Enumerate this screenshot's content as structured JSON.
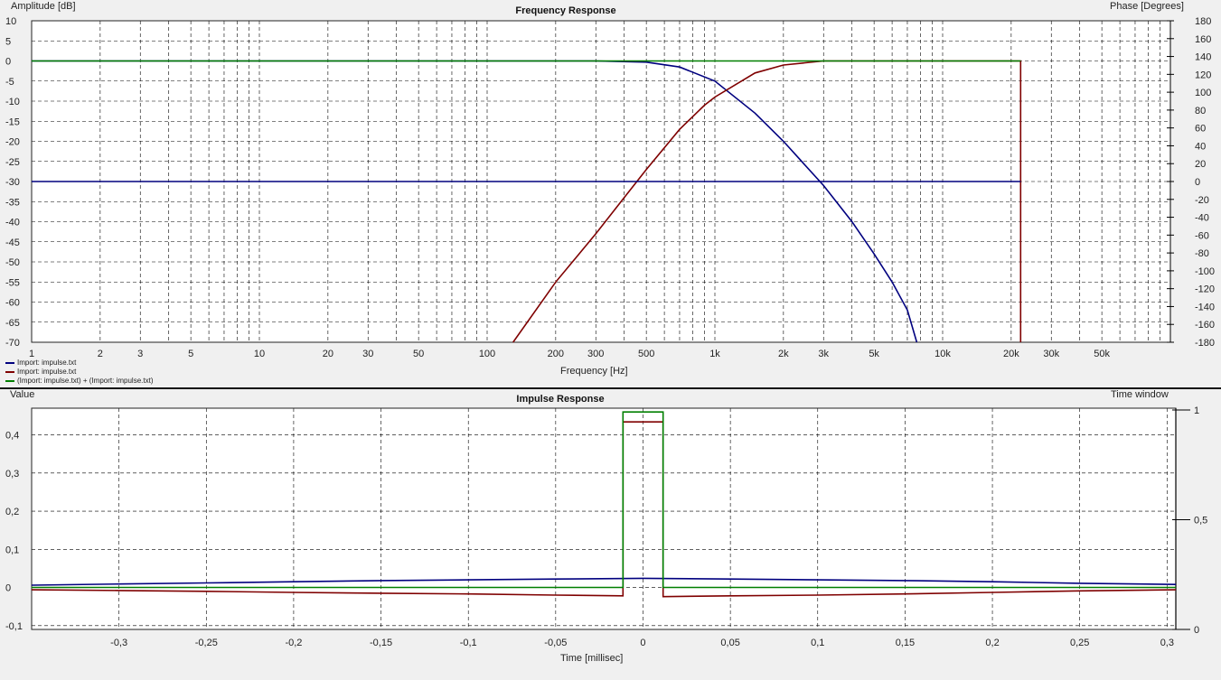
{
  "chart_data": [
    {
      "type": "line",
      "title": "Frequency Response",
      "ylabel": "Amplitude [dB]",
      "y2label": "Phase [Degrees]",
      "xlabel": "Frequency [Hz]",
      "xscale": "log",
      "xlim": [
        1,
        100000
      ],
      "ylim": [
        -70,
        10
      ],
      "y2lim": [
        -180,
        180
      ],
      "grid": true,
      "x_tick_labels": [
        "1",
        "2",
        "3",
        "5",
        "10",
        "20",
        "30",
        "50",
        "100",
        "200",
        "300",
        "500",
        "1k",
        "2k",
        "3k",
        "5k",
        "10k",
        "20k",
        "30k",
        "50k"
      ],
      "x_tick_values": [
        1,
        2,
        3,
        5,
        10,
        20,
        30,
        50,
        100,
        200,
        300,
        500,
        1000,
        2000,
        3000,
        5000,
        10000,
        20000,
        30000,
        50000
      ],
      "y_ticks": [
        10,
        5,
        0,
        -5,
        -10,
        -15,
        -20,
        -25,
        -30,
        -35,
        -40,
        -45,
        -50,
        -55,
        -60,
        -65,
        -70
      ],
      "y2_ticks": [
        180,
        160,
        140,
        120,
        100,
        80,
        60,
        40,
        20,
        0,
        -20,
        -40,
        -60,
        -80,
        -100,
        -120,
        -140,
        -160,
        -180
      ],
      "legend": [
        {
          "name": "Import: impulse.txt",
          "color": "#00007f"
        },
        {
          "name": "Import: impulse.txt",
          "color": "#7f0000"
        },
        {
          "name": "(Import: impulse.txt) + (Import: impulse.txt)",
          "color": "#007f00"
        }
      ],
      "series": [
        {
          "name": "Import: impulse.txt",
          "color": "#00007f",
          "x": [
            1,
            100,
            300,
            500,
            700,
            1000,
            1500,
            2000,
            3000,
            4000,
            5000,
            6000,
            7000,
            7700
          ],
          "y": [
            0,
            0,
            0,
            -0.3,
            -1.5,
            -5,
            -13,
            -20,
            -31,
            -40,
            -48,
            -55,
            -62,
            -70
          ]
        },
        {
          "name": "Import: impulse.txt",
          "color": "#7f0000",
          "x": [
            130,
            200,
            300,
            400,
            500,
            700,
            900,
            1000,
            1500,
            2000,
            3000,
            5000,
            10000,
            22000,
            22000
          ],
          "y": [
            -70,
            -55,
            -43,
            -34,
            -27,
            -17,
            -11,
            -9,
            -3,
            -1,
            0,
            0,
            0,
            0,
            -70
          ]
        },
        {
          "name": "(Import: impulse.txt) + (Import: impulse.txt)",
          "color": "#007f00",
          "x": [
            1,
            22000
          ],
          "y": [
            0,
            0
          ]
        },
        {
          "name": "Import: impulse.txt",
          "color": "#00007f",
          "axis": "phase",
          "x": [
            1,
            22000
          ],
          "y": [
            0,
            0
          ]
        }
      ]
    },
    {
      "type": "line",
      "title": "Impulse Response",
      "ylabel": "Value",
      "y2label": "Time window",
      "xlabel": "Time [millisec]",
      "xlim": [
        -0.35,
        0.305
      ],
      "ylim": [
        -0.11,
        0.47
      ],
      "y2lim": [
        0,
        1
      ],
      "grid": true,
      "x_ticks": [
        -0.3,
        -0.25,
        -0.2,
        -0.15,
        -0.1,
        -0.05,
        0,
        0.05,
        0.1,
        0.15,
        0.2,
        0.25,
        0.3
      ],
      "x_tick_labels": [
        "-0,3",
        "-0,25",
        "-0,2",
        "-0,15",
        "-0,1",
        "-0,05",
        "0",
        "0,05",
        "0,1",
        "0,15",
        "0,2",
        "0,25",
        "0,3"
      ],
      "y_ticks": [
        0.4,
        0.3,
        0.2,
        0.1,
        0,
        -0.1
      ],
      "y_tick_labels": [
        "0,4",
        "0,3",
        "0,2",
        "0,1",
        "0",
        "-0,1"
      ],
      "y2_ticks": [
        1,
        0.5,
        0
      ],
      "y2_tick_labels": [
        "1",
        "0,5",
        "0"
      ],
      "series": [
        {
          "name": "Import: impulse.txt",
          "color": "#00007f",
          "x": [
            -0.35,
            -0.3,
            -0.25,
            -0.2,
            -0.15,
            -0.1,
            -0.05,
            0,
            0.05,
            0.1,
            0.15,
            0.2,
            0.25,
            0.305
          ],
          "y": [
            0.006,
            0.009,
            0.012,
            0.015,
            0.018,
            0.02,
            0.022,
            0.024,
            0.022,
            0.02,
            0.018,
            0.015,
            0.011,
            0.008
          ]
        },
        {
          "name": "Import: impulse.txt",
          "color": "#7f0000",
          "x": [
            -0.35,
            -0.3,
            -0.25,
            -0.2,
            -0.15,
            -0.1,
            -0.05,
            -0.0115,
            -0.0115,
            0.0115,
            0.0115,
            0.05,
            0.1,
            0.15,
            0.2,
            0.25,
            0.305
          ],
          "y": [
            -0.006,
            -0.008,
            -0.01,
            -0.013,
            -0.015,
            -0.017,
            -0.02,
            -0.022,
            0.434,
            0.434,
            -0.024,
            -0.022,
            -0.02,
            -0.017,
            -0.013,
            -0.009,
            -0.006
          ]
        },
        {
          "name": "(Import: impulse.txt) + (Import: impulse.txt)",
          "color": "#007f00",
          "x": [
            -0.35,
            -0.0115,
            -0.0115,
            0.0115,
            0.0115,
            0.305
          ],
          "y": [
            0,
            0,
            0.46,
            0.46,
            0,
            0
          ]
        }
      ]
    }
  ]
}
